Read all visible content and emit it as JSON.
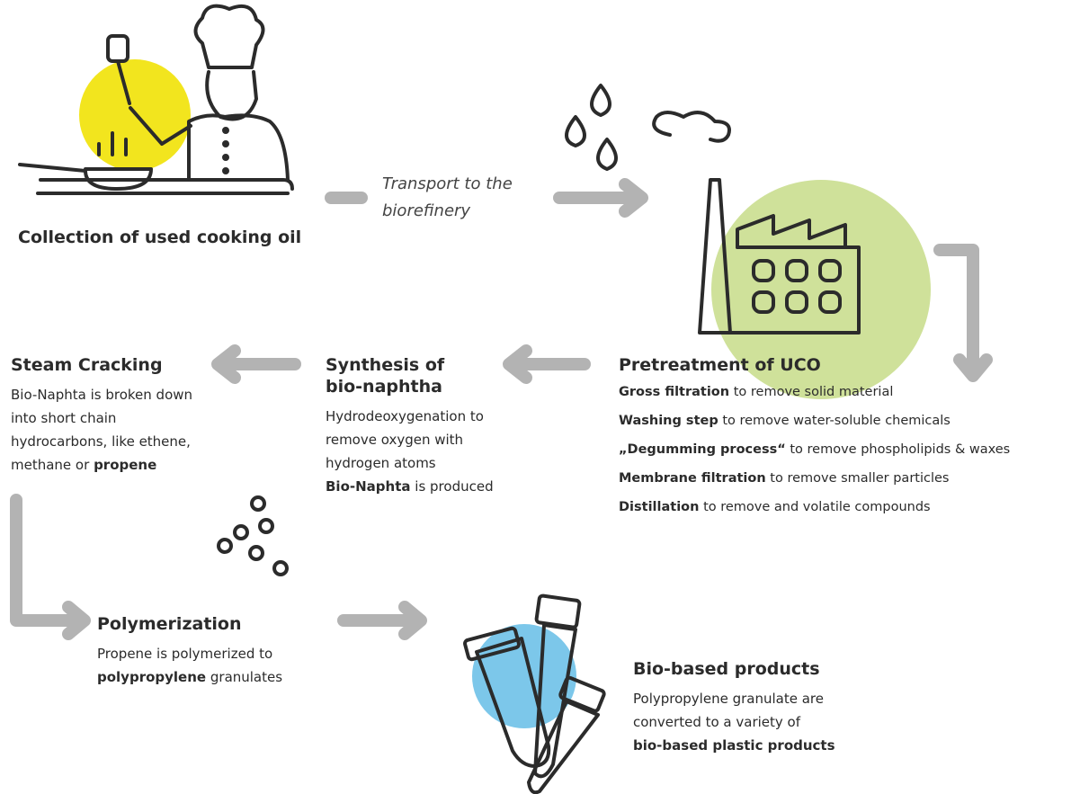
{
  "collection": {
    "label": "Collection of used cooking oil"
  },
  "transport": {
    "label": "Transport to the biorefinery"
  },
  "pretreatment": {
    "title": "Pretreatment of UCO",
    "steps": [
      {
        "bold": "Gross filtration",
        "text": "to remove solid material"
      },
      {
        "bold": "Washing step",
        "text": "to remove water-soluble chemicals"
      },
      {
        "bold": "„Degumming process“",
        "text": "to remove phospholipids & waxes"
      },
      {
        "bold": "Membrane filtration",
        "text": "to remove smaller particles"
      },
      {
        "bold": "Distillation",
        "text": "to remove and volatile compounds"
      }
    ]
  },
  "synthesis": {
    "title": "Synthesis of bio-naphtha",
    "text": "Hydrodeoxygenation to remove oxygen with hydrogen atoms",
    "bold": "Bio-Naphta",
    "text_after": "is produced"
  },
  "steam_cracking": {
    "title": "Steam Cracking",
    "text": "Bio-Naphta is broken down into short chain hydrocarbons, like ethene, methane or",
    "bold": "propene"
  },
  "polymerization": {
    "title": "Polymerization",
    "text": "Propene is polymerized to",
    "bold": "polypropylene",
    "text_after": "granulates"
  },
  "products": {
    "title": "Bio-based products",
    "text": "Polypropylene granulate are converted to a variety of",
    "bold": "bio-based plastic products"
  }
}
